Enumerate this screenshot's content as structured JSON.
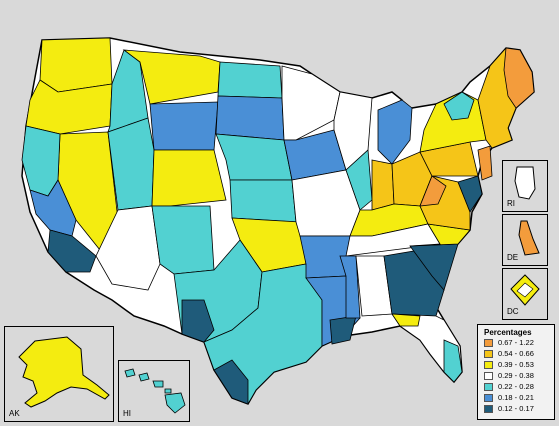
{
  "legend": {
    "title": "Percentages",
    "items": [
      {
        "label": "0.67 - 1.22",
        "color": "#f39c3c"
      },
      {
        "label": "0.54 - 0.66",
        "color": "#f5c518"
      },
      {
        "label": "0.39 - 0.53",
        "color": "#f4ec10"
      },
      {
        "label": "0.29 - 0.38",
        "color": "#ffffff"
      },
      {
        "label": "0.22 - 0.28",
        "color": "#52d1d1"
      },
      {
        "label": "0.18 - 0.21",
        "color": "#4a8fd6"
      },
      {
        "label": "0.12 - 0.17",
        "color": "#1f5b7a"
      }
    ]
  },
  "insets": {
    "alaska": "AK",
    "hawaii": "HI",
    "rhode_island": "RI",
    "delaware": "DE",
    "dc": "DC"
  },
  "colors": {
    "background": "#d9d9d9",
    "border": "#000000"
  }
}
